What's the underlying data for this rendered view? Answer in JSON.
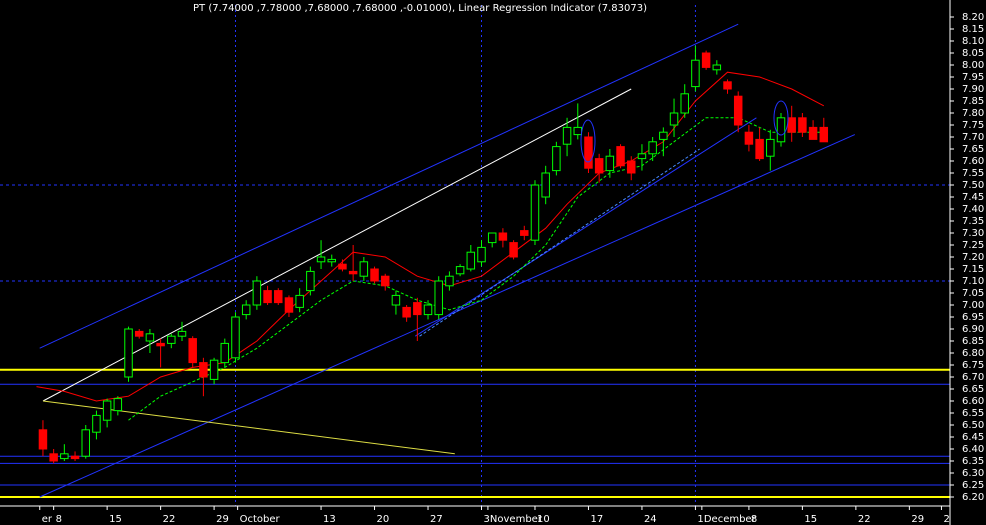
{
  "chart_data": {
    "type": "candlestick",
    "title": "PT (7.74000 ,7.78000 ,7.68000 ,7.68000 ,-0.01000), Linear Regression Indicator (7.83073)",
    "open": [
      6.48,
      6.38,
      6.36,
      6.37,
      6.37,
      6.47,
      6.52,
      6.56,
      6.7,
      6.89,
      6.85,
      6.84,
      6.84,
      6.87,
      6.86,
      6.76,
      6.69,
      6.76,
      6.78,
      6.96,
      7.0,
      7.06,
      7.06,
      7.03,
      6.99,
      7.06,
      7.18,
      7.18,
      7.17,
      7.14,
      7.12,
      7.15,
      7.12,
      7.0,
      6.99,
      7.01,
      6.96,
      6.96,
      7.08,
      7.13,
      7.15,
      7.18,
      7.26,
      7.3,
      7.26,
      7.31,
      7.27,
      7.45,
      7.56,
      7.67,
      7.71,
      7.7,
      7.61,
      7.56,
      7.66,
      7.6,
      7.61,
      7.63,
      7.69,
      7.75,
      7.8,
      7.91,
      8.05,
      7.98,
      7.93,
      7.87,
      7.72,
      7.69,
      7.62,
      7.68,
      7.78,
      7.78,
      7.74,
      7.74
    ],
    "high": [
      6.52,
      6.4,
      6.42,
      6.39,
      6.5,
      6.56,
      6.61,
      6.62,
      6.91,
      6.9,
      6.9,
      6.86,
      6.88,
      6.93,
      6.87,
      6.78,
      6.78,
      6.86,
      6.97,
      7.02,
      7.12,
      7.08,
      7.07,
      7.04,
      7.07,
      7.16,
      7.27,
      7.21,
      7.19,
      7.25,
      7.2,
      7.16,
      7.13,
      7.06,
      7.0,
      7.03,
      7.02,
      7.12,
      7.14,
      7.17,
      7.25,
      7.27,
      7.3,
      7.32,
      7.27,
      7.33,
      7.52,
      7.58,
      7.68,
      7.78,
      7.84,
      7.72,
      7.63,
      7.65,
      7.67,
      7.62,
      7.67,
      7.7,
      7.74,
      7.86,
      7.92,
      8.08,
      8.06,
      8.02,
      7.94,
      7.89,
      7.75,
      7.74,
      7.73,
      7.8,
      7.83,
      7.8,
      7.77,
      7.78
    ],
    "low": [
      6.37,
      6.34,
      6.35,
      6.35,
      6.36,
      6.44,
      6.49,
      6.54,
      6.68,
      6.86,
      6.8,
      6.74,
      6.82,
      6.85,
      6.74,
      6.62,
      6.67,
      6.74,
      6.76,
      6.94,
      6.98,
      7.0,
      7.0,
      6.95,
      6.97,
      7.04,
      7.15,
      7.16,
      7.14,
      7.1,
      7.1,
      7.09,
      7.06,
      6.96,
      6.93,
      6.85,
      6.94,
      6.94,
      7.06,
      7.12,
      7.14,
      7.16,
      7.24,
      7.24,
      7.19,
      7.27,
      7.25,
      7.42,
      7.54,
      7.62,
      7.69,
      7.55,
      7.51,
      7.53,
      7.57,
      7.52,
      7.56,
      7.6,
      7.62,
      7.7,
      7.78,
      7.89,
      7.98,
      7.96,
      7.88,
      7.72,
      7.64,
      7.6,
      7.56,
      7.66,
      7.68,
      7.7,
      7.69,
      7.68
    ],
    "close": [
      6.4,
      6.35,
      6.38,
      6.36,
      6.48,
      6.54,
      6.6,
      6.61,
      6.9,
      6.87,
      6.88,
      6.83,
      6.87,
      6.89,
      6.76,
      6.7,
      6.77,
      6.84,
      6.95,
      7.0,
      7.1,
      7.01,
      7.01,
      6.97,
      7.04,
      7.14,
      7.2,
      7.19,
      7.15,
      7.13,
      7.18,
      7.1,
      7.08,
      7.04,
      6.95,
      6.96,
      7.0,
      7.1,
      7.12,
      7.16,
      7.22,
      7.24,
      7.3,
      7.27,
      7.2,
      7.29,
      7.5,
      7.55,
      7.66,
      7.74,
      7.74,
      7.57,
      7.55,
      7.62,
      7.58,
      7.55,
      7.63,
      7.68,
      7.72,
      7.8,
      7.88,
      8.02,
      7.99,
      8.0,
      7.9,
      7.75,
      7.67,
      7.61,
      7.69,
      7.78,
      7.72,
      7.72,
      7.69,
      7.68
    ],
    "up_color": "#00ff00",
    "down_color": "#ff0000",
    "ylim": [
      6.175,
      8.25
    ],
    "xlim": [
      -0.65,
      84.8
    ],
    "yticks": [
      {
        "value": 8.2,
        "label": "8.20"
      },
      {
        "value": 8.15,
        "label": "8.15"
      },
      {
        "value": 8.1,
        "label": "8.10"
      },
      {
        "value": 8.05,
        "label": "8.05"
      },
      {
        "value": 8.0,
        "label": "8.00"
      },
      {
        "value": 7.95,
        "label": "7.95"
      },
      {
        "value": 7.9,
        "label": "7.90"
      },
      {
        "value": 7.85,
        "label": "7.85"
      },
      {
        "value": 7.8,
        "label": "7.80"
      },
      {
        "value": 7.75,
        "label": "7.75"
      },
      {
        "value": 7.7,
        "label": "7.70"
      },
      {
        "value": 7.65,
        "label": "7.65"
      },
      {
        "value": 7.6,
        "label": "7.60"
      },
      {
        "value": 7.55,
        "label": "7.55"
      },
      {
        "value": 7.5,
        "label": "7.50"
      },
      {
        "value": 7.45,
        "label": "7.45"
      },
      {
        "value": 7.4,
        "label": "7.40"
      },
      {
        "value": 7.35,
        "label": "7.35"
      },
      {
        "value": 7.3,
        "label": "7.30"
      },
      {
        "value": 7.25,
        "label": "7.25"
      },
      {
        "value": 7.2,
        "label": "7.20"
      },
      {
        "value": 7.15,
        "label": "7.15"
      },
      {
        "value": 7.1,
        "label": "7.10"
      },
      {
        "value": 7.05,
        "label": "7.05"
      },
      {
        "value": 7.0,
        "label": "7.00"
      },
      {
        "value": 6.95,
        "label": "6.95"
      },
      {
        "value": 6.9,
        "label": "6.90"
      },
      {
        "value": 6.85,
        "label": "6.85"
      },
      {
        "value": 6.8,
        "label": "6.80"
      },
      {
        "value": 6.75,
        "label": "6.75"
      },
      {
        "value": 6.7,
        "label": "6.70"
      },
      {
        "value": 6.65,
        "label": "6.65"
      },
      {
        "value": 6.6,
        "label": "6.60"
      },
      {
        "value": 6.55,
        "label": "6.55"
      },
      {
        "value": 6.5,
        "label": "6.50"
      },
      {
        "value": 6.45,
        "label": "6.45"
      },
      {
        "value": 6.4,
        "label": "6.40"
      },
      {
        "value": 6.35,
        "label": "6.35"
      },
      {
        "value": 6.3,
        "label": "6.30"
      },
      {
        "value": 6.25,
        "label": "6.25"
      },
      {
        "value": 6.2,
        "label": "6.20"
      }
    ],
    "xticks": [
      {
        "value": -0.3,
        "label": "er"
      },
      {
        "value": 1,
        "label": "8"
      },
      {
        "value": 6,
        "label": "15"
      },
      {
        "value": 11,
        "label": "22"
      },
      {
        "value": 16,
        "label": "29"
      },
      {
        "value": 18.2,
        "label": "October"
      },
      {
        "value": 26,
        "label": "13"
      },
      {
        "value": 31,
        "label": "20"
      },
      {
        "value": 36,
        "label": "27"
      },
      {
        "value": 41,
        "label": "3"
      },
      {
        "value": 41.6,
        "label": "November"
      },
      {
        "value": 46,
        "label": "10"
      },
      {
        "value": 51,
        "label": "17"
      },
      {
        "value": 56,
        "label": "24"
      },
      {
        "value": 61,
        "label": "1"
      },
      {
        "value": 61.6,
        "label": "December"
      },
      {
        "value": 66,
        "label": "8"
      },
      {
        "value": 71,
        "label": "15"
      },
      {
        "value": 76,
        "label": "22"
      },
      {
        "value": 81,
        "label": "29"
      },
      {
        "value": 84,
        "label": "2"
      }
    ],
    "vlines": [
      18,
      41,
      61
    ],
    "hlines": [
      {
        "value": 6.73,
        "color": "#ffff00",
        "dash": false
      },
      {
        "value": 6.2,
        "color": "#ffff00",
        "dash": false
      },
      {
        "value": 6.67,
        "color": "#2233ff",
        "dash": false
      },
      {
        "value": 6.37,
        "color": "#2233ff",
        "dash": false
      },
      {
        "value": 6.34,
        "color": "#2233ff",
        "dash": false
      },
      {
        "value": 6.25,
        "color": "#2233ff",
        "dash": false
      },
      {
        "value": 7.5,
        "color": "#2233ff",
        "dash": true
      },
      {
        "value": 7.1,
        "color": "#2233ff",
        "dash": true
      }
    ],
    "lines": [
      {
        "color": "#2233ff",
        "dash": false,
        "x": [
          -0.3,
          65
        ],
        "values": [
          6.82,
          8.17
        ]
      },
      {
        "color": "#2233ff",
        "dash": false,
        "x": [
          -0.3,
          75.9
        ],
        "values": [
          6.2,
          7.71
        ]
      },
      {
        "color": "#2233ff",
        "dash": false,
        "x": [
          34.8,
          66.7
        ],
        "values": [
          6.87,
          7.78
        ]
      },
      {
        "color": "#4488ff",
        "dash": true,
        "x": [
          35.2,
          61.4
        ],
        "values": [
          6.87,
          7.65
        ]
      },
      {
        "color": "#ffffff",
        "dash": false,
        "x": [
          0,
          55
        ],
        "values": [
          6.6,
          7.9
        ]
      },
      {
        "color": "#dddd44",
        "dash": false,
        "x": [
          0,
          38.5
        ],
        "values": [
          6.6,
          6.38
        ]
      },
      {
        "color": "#ff0000",
        "dash": false,
        "x": [
          -0.6,
          2,
          5,
          8,
          11,
          14,
          17,
          20,
          23,
          26,
          29,
          32,
          35,
          38,
          41,
          44,
          47,
          49,
          52,
          55,
          58,
          61,
          64,
          67,
          70,
          73
        ],
        "values": [
          6.66,
          6.64,
          6.6,
          6.62,
          6.7,
          6.74,
          6.76,
          6.85,
          6.98,
          7.1,
          7.22,
          7.2,
          7.12,
          7.08,
          7.12,
          7.22,
          7.32,
          7.42,
          7.55,
          7.6,
          7.68,
          7.85,
          7.97,
          7.95,
          7.9,
          7.83
        ]
      },
      {
        "color": "#00ff00",
        "dash": true,
        "x": [
          8,
          11,
          14,
          17,
          20,
          23,
          26,
          29,
          32,
          35,
          38,
          41,
          44,
          47,
          50,
          53,
          56,
          59,
          62,
          65,
          68,
          71,
          73
        ],
        "values": [
          6.52,
          6.62,
          6.68,
          6.74,
          6.82,
          6.92,
          7.02,
          7.1,
          7.08,
          7.02,
          6.98,
          7.02,
          7.12,
          7.25,
          7.45,
          7.55,
          7.58,
          7.68,
          7.78,
          7.78,
          7.72,
          7.72,
          7.72
        ]
      }
    ]
  }
}
